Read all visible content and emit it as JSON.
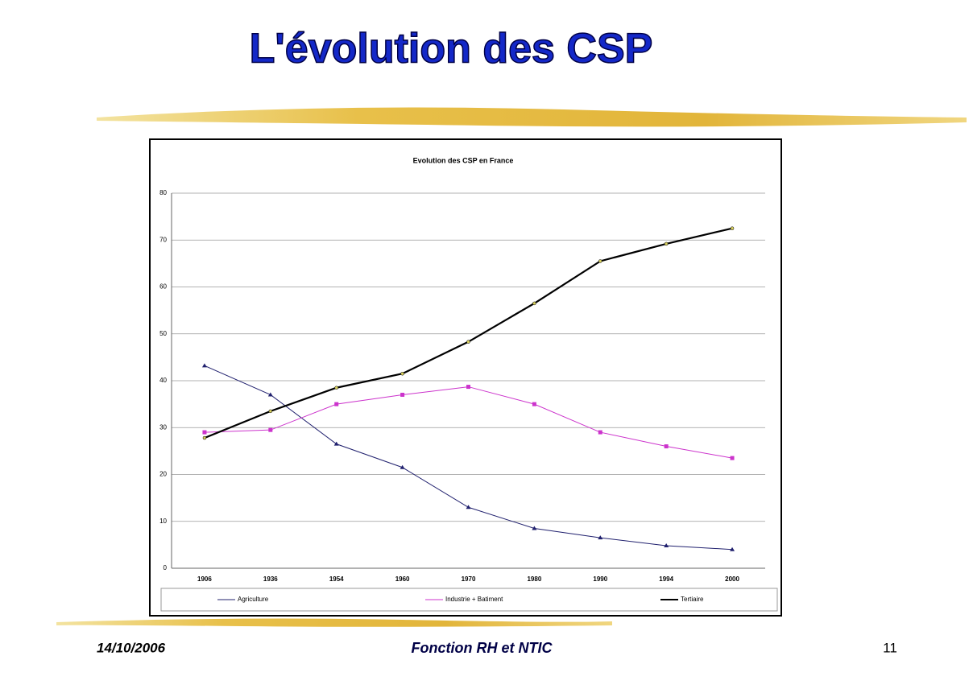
{
  "slide": {
    "title": "L'évolution des CSP",
    "date": "14/10/2006",
    "footer": "Fonction RH et NTIC",
    "page": "11"
  },
  "chart_data": {
    "type": "line",
    "title": "Evolution des CSP en France",
    "categories": [
      "1906",
      "1936",
      "1954",
      "1960",
      "1970",
      "1980",
      "1990",
      "1994",
      "2000"
    ],
    "series": [
      {
        "name": "Agriculture",
        "color": "#20206e",
        "values": [
          43.2,
          37,
          26.5,
          21.5,
          13,
          8.5,
          6.5,
          4.8,
          4
        ]
      },
      {
        "name": "Industrie + Batiment",
        "color": "#cc33cc",
        "values": [
          29,
          29.5,
          35,
          37,
          38.7,
          35,
          29,
          26,
          23.5
        ]
      },
      {
        "name": "Tertiaire",
        "color": "#000000",
        "values": [
          27.8,
          33.5,
          38.5,
          41.5,
          48.3,
          56.5,
          65.5,
          69.2,
          72.5
        ]
      }
    ],
    "ylim": [
      0,
      80
    ],
    "yticks": [
      0,
      10,
      20,
      30,
      40,
      50,
      60,
      70,
      80
    ],
    "grid": true,
    "legend": "bottom"
  }
}
